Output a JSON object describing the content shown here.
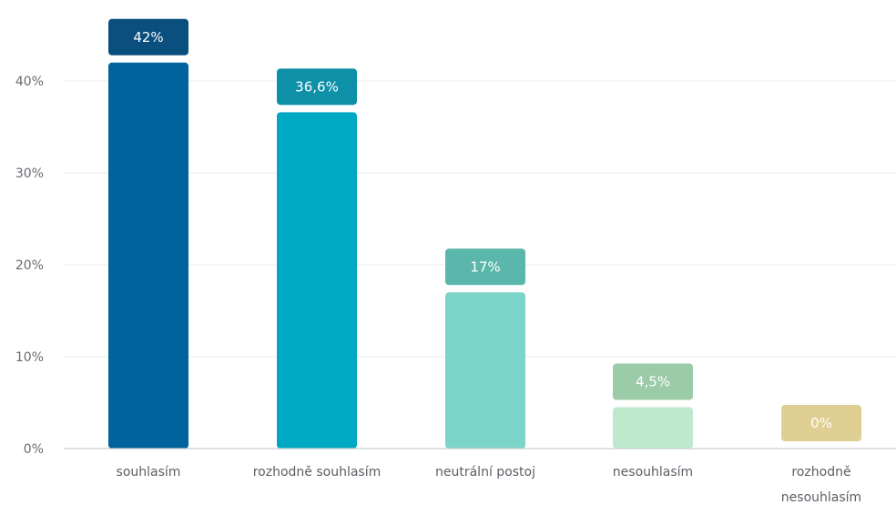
{
  "chart_data": {
    "type": "bar",
    "categories": [
      "souhlasím",
      "rozhodně souhlasím",
      "neutrální postoj",
      "nesouhlasím",
      "rozhodně nesouhlasím"
    ],
    "values": [
      42,
      36.6,
      17,
      4.5,
      0
    ],
    "value_labels": [
      "42%",
      "36,6%",
      "17%",
      "4,5%",
      "0%"
    ],
    "bar_colors": [
      "#00639b",
      "#00a9c3",
      "#7dd4c9",
      "#bde9cd",
      "#f0e4b6"
    ],
    "label_colors": [
      "#0a4f7e",
      "#0e90a8",
      "#5bb7ab",
      "#9ccba8",
      "#e0cf92"
    ],
    "y_ticks": [
      "0%",
      "10%",
      "20%",
      "30%",
      "40%"
    ],
    "y_tick_values": [
      0,
      10,
      20,
      30,
      40
    ],
    "ylim": [
      0,
      40
    ],
    "grid": true,
    "legend": "none",
    "title": "",
    "xlabel": "",
    "ylabel": ""
  }
}
